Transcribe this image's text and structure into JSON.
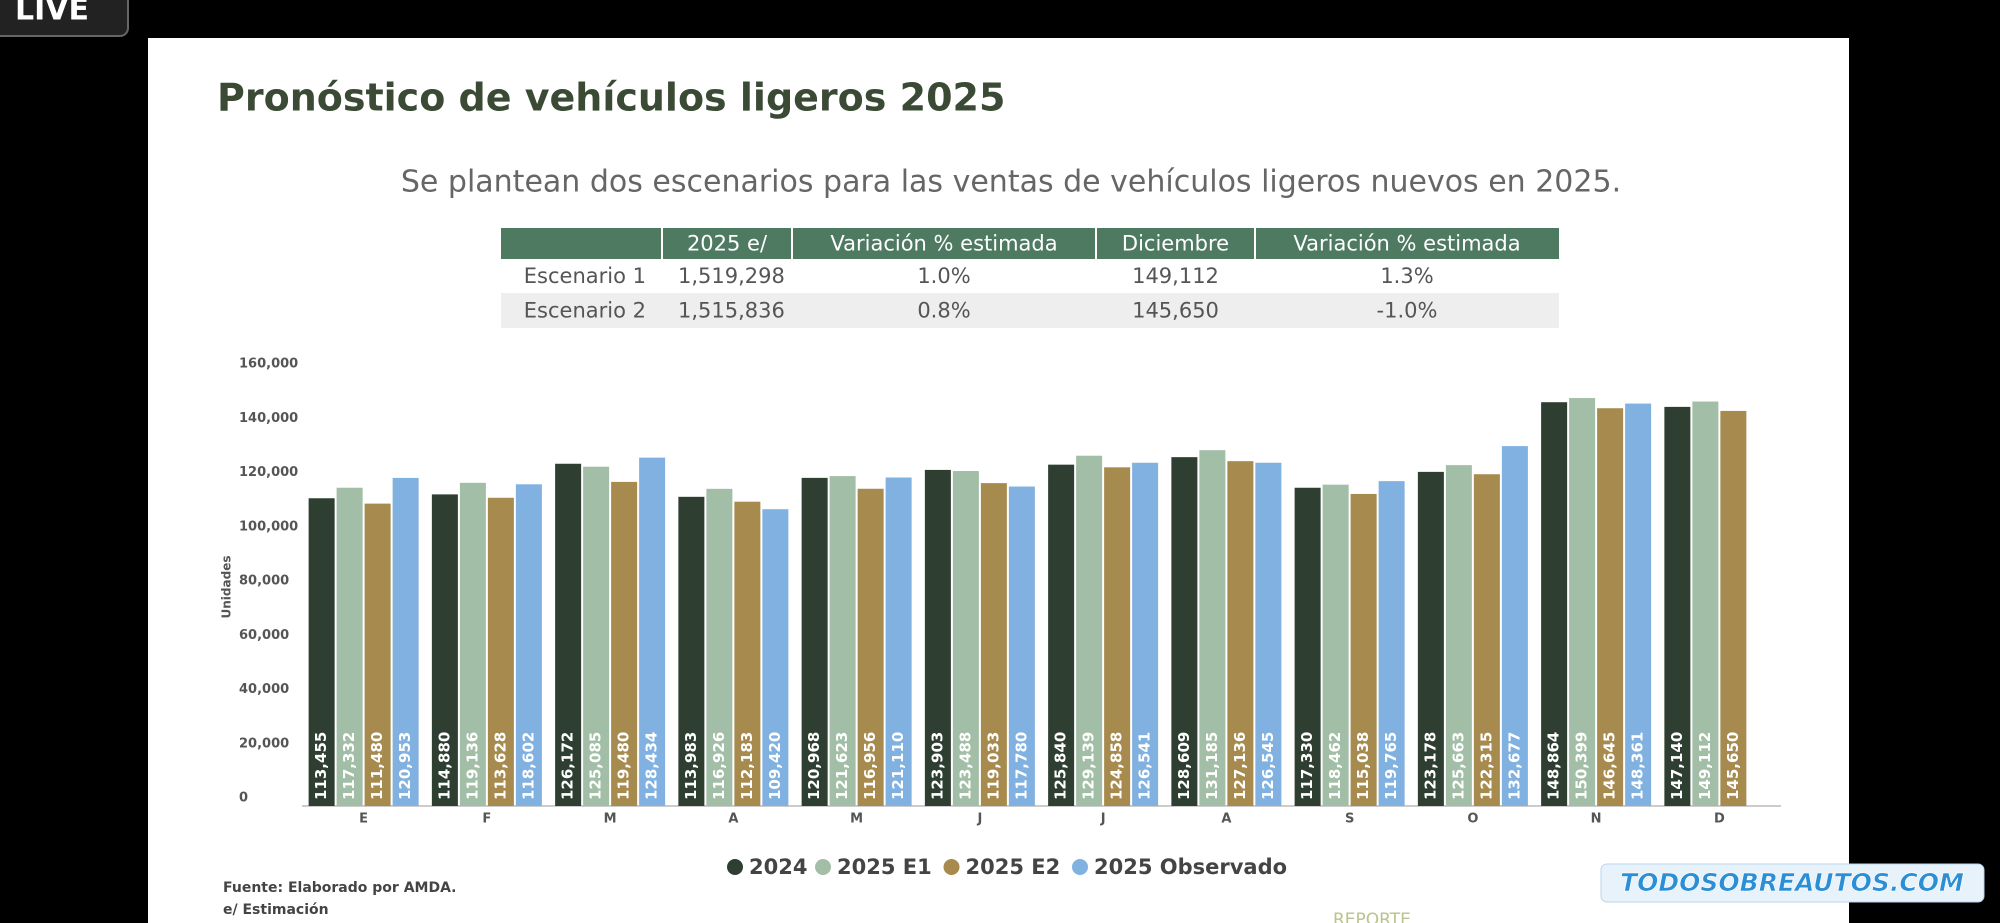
{
  "badge": "LIVE",
  "header": {
    "title": "Pronóstico de vehículos ligeros 2025",
    "subtitle": "Se plantean dos escenarios para las ventas de vehículos ligeros nuevos en 2025."
  },
  "table": {
    "header": [
      "2025 e/",
      "Variación % estimada",
      "Diciembre",
      "Variación % estimada"
    ],
    "rows": [
      [
        "Escenario 1",
        "1,519,298",
        "1.0%",
        "149,112",
        "1.3%"
      ],
      [
        "Escenario 2",
        "1,515,836",
        "0.8%",
        "145,650",
        "-1.0%"
      ]
    ]
  },
  "chart_data": {
    "type": "bar",
    "y_label": "Unidades",
    "categories": [
      "E",
      "F",
      "M",
      "A",
      "M",
      "J",
      "J",
      "A",
      "S",
      "O",
      "N",
      "D"
    ],
    "series": [
      {
        "name": "2024",
        "color": "#2e3f31",
        "values": [
          113455,
          114880,
          126172,
          113983,
          120968,
          123903,
          125840,
          128609,
          117330,
          123178,
          148864,
          147140
        ],
        "value_labels": [
          "113,455",
          "114,880",
          "126,172",
          "113,983",
          "120,968",
          "123,903",
          "125,840",
          "128,609",
          "117,330",
          "123,178",
          "148,864",
          "147,140"
        ]
      },
      {
        "name": "2025 E1",
        "color": "#a2bea6",
        "values": [
          117332,
          119136,
          125085,
          116926,
          121623,
          123488,
          129139,
          131185,
          118462,
          125663,
          150399,
          149112
        ],
        "value_labels": [
          "117,332",
          "119,136",
          "125,085",
          "116,926",
          "121,623",
          "123,488",
          "129,139",
          "131,185",
          "118,462",
          "125,663",
          "150,399",
          "149,112"
        ]
      },
      {
        "name": "2025 E2",
        "color": "#a78b4e",
        "values": [
          111480,
          113628,
          119480,
          112183,
          116956,
          119033,
          124858,
          127136,
          115038,
          122315,
          146645,
          145650
        ],
        "value_labels": [
          "111,480",
          "113,628",
          "119,480",
          "112,183",
          "116,956",
          "119,033",
          "124,858",
          "127,136",
          "115,038",
          "122,315",
          "146,645",
          "145,650"
        ]
      },
      {
        "name": "2025 Observado",
        "color": "#80b1e0",
        "values": [
          120953,
          118602,
          128434,
          109420,
          121110,
          117780,
          126541,
          126545,
          119765,
          132677,
          148361,
          null
        ],
        "value_labels": [
          "120,953",
          "118,602",
          "128,434",
          "109,420",
          "121,110",
          "117,780",
          "126,541",
          "126,545",
          "119,765",
          "132,677",
          "148,361",
          null
        ]
      }
    ],
    "ylim": [
      0,
      160000
    ],
    "yticks": [
      0,
      {
        "value": 20000,
        "label": "20,000"
      },
      {
        "value": 40000,
        "label": "40,000"
      },
      {
        "value": 60000,
        "label": "60,000"
      },
      {
        "value": 80000,
        "label": "80,000"
      },
      {
        "value": 100000,
        "label": "100,000"
      },
      {
        "value": 120000,
        "label": "120,000"
      },
      {
        "value": 140000,
        "label": "140,000"
      },
      {
        "value": 160000,
        "label": "160,000"
      }
    ],
    "grid": false,
    "legend": "bottom"
  },
  "footnotes": [
    "Fuente: Elaborado por AMDA.",
    "e/ Estimación"
  ],
  "watermark": "TODOSOBREAUTOS.COM",
  "footer_text": "REPORTE"
}
